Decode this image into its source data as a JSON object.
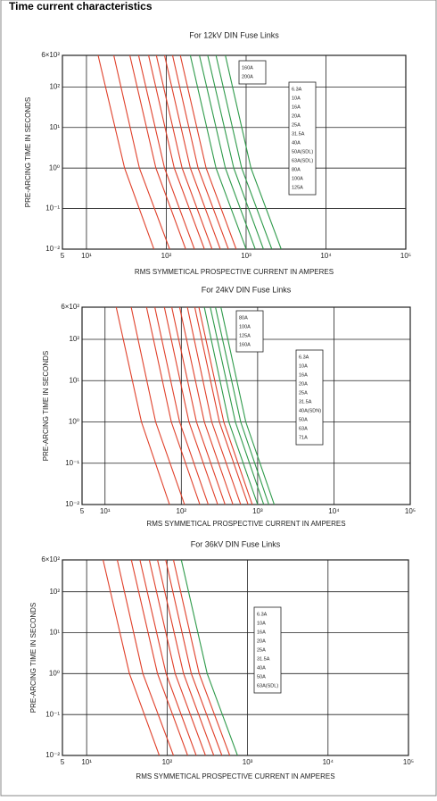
{
  "page_title": "Time current characteristics",
  "chart_data": [
    {
      "type": "line",
      "title": "For 12kV DIN Fuse Links",
      "x_label": "RMS SYMMETICAL PROSPECTIVE CURRENT IN AMPERES",
      "y_label": "PRE-ARCING TIME IN SECONDS",
      "log_x": true,
      "log_y": true,
      "grid": true,
      "xlim": [
        5,
        100000
      ],
      "ylim": [
        0.01,
        600
      ],
      "xticks": [
        5,
        {
          "value": 10,
          "label": "10¹"
        },
        {
          "value": 100,
          "label": "10²"
        },
        {
          "value": 1000,
          "label": "10³"
        },
        {
          "value": 10000,
          "label": "10⁴"
        },
        {
          "value": 100000,
          "label": "10⁵"
        }
      ],
      "yticks": [
        {
          "value": 600,
          "label": "6×10²"
        },
        {
          "value": 100,
          "label": "10²"
        },
        {
          "value": 10,
          "label": "10¹"
        },
        {
          "value": 1,
          "label": "10⁰"
        },
        {
          "value": 0.1,
          "label": "10⁻¹"
        },
        {
          "value": 0.01,
          "label": "10⁻²"
        }
      ],
      "series": [
        {
          "name": "6.3A",
          "color": "#e0402a",
          "x": [
            14,
            30,
            70
          ],
          "values": [
            600,
            1,
            0.01
          ]
        },
        {
          "name": "10A",
          "color": "#e0402a",
          "x": [
            22,
            46,
            110
          ],
          "values": [
            600,
            1,
            0.01
          ]
        },
        {
          "name": "16A",
          "color": "#e0402a",
          "x": [
            35,
            74,
            175
          ],
          "values": [
            600,
            1,
            0.01
          ]
        },
        {
          "name": "20A",
          "color": "#e0402a",
          "x": [
            45,
            95,
            225
          ],
          "values": [
            600,
            1,
            0.01
          ]
        },
        {
          "name": "25A",
          "color": "#e0402a",
          "x": [
            60,
            126,
            300
          ],
          "values": [
            600,
            1,
            0.01
          ]
        },
        {
          "name": "31.5A",
          "color": "#e0402a",
          "x": [
            75,
            158,
            375
          ],
          "values": [
            600,
            1,
            0.01
          ]
        },
        {
          "name": "40A",
          "color": "#e0402a",
          "x": [
            95,
            200,
            475
          ],
          "values": [
            600,
            1,
            0.01
          ]
        },
        {
          "name": "50A(SDL)",
          "color": "#e0402a",
          "x": [
            120,
            250,
            600
          ],
          "values": [
            600,
            1,
            0.01
          ]
        },
        {
          "name": "63A(SDL)",
          "color": "#e0402a",
          "x": [
            150,
            315,
            750
          ],
          "values": [
            600,
            1,
            0.01
          ]
        },
        {
          "name": "80A",
          "color": "#2e9a4a",
          "x": [
            200,
            420,
            1000
          ],
          "values": [
            600,
            1,
            0.01
          ]
        },
        {
          "name": "100A",
          "color": "#2e9a4a",
          "x": [
            260,
            550,
            1300
          ],
          "values": [
            600,
            1,
            0.01
          ]
        },
        {
          "name": "125A",
          "color": "#2e9a4a",
          "x": [
            330,
            700,
            1650
          ],
          "values": [
            600,
            1,
            0.01
          ]
        },
        {
          "name": "160A",
          "color": "#2e9a4a",
          "x": [
            420,
            880,
            2100
          ],
          "values": [
            600,
            1,
            0.01
          ]
        },
        {
          "name": "200A",
          "color": "#2e9a4a",
          "x": [
            550,
            1150,
            2750
          ],
          "values": [
            600,
            1,
            0.01
          ]
        }
      ]
    },
    {
      "type": "line",
      "title": "For 24kV DIN Fuse Links",
      "x_label": "RMS SYMMETICAL PROSPECTIVE CURRENT IN AMPERES",
      "y_label": "PRE-ARCING TIME IN SECONDS",
      "log_x": true,
      "log_y": true,
      "grid": true,
      "xlim": [
        5,
        100000
      ],
      "ylim": [
        0.01,
        600
      ],
      "xticks": [
        5,
        {
          "value": 10,
          "label": "10¹"
        },
        {
          "value": 100,
          "label": "10²"
        },
        {
          "value": 1000,
          "label": "10³"
        },
        {
          "value": 10000,
          "label": "10⁴"
        },
        {
          "value": 100000,
          "label": "10⁵"
        }
      ],
      "yticks": [
        {
          "value": 600,
          "label": "6×10²"
        },
        {
          "value": 100,
          "label": "10²"
        },
        {
          "value": 10,
          "label": "10¹"
        },
        {
          "value": 1,
          "label": "10⁰"
        },
        {
          "value": 0.1,
          "label": "10⁻¹"
        },
        {
          "value": 0.01,
          "label": "10⁻²"
        }
      ],
      "series": [
        {
          "name": "6.3A",
          "color": "#e0402a",
          "x": [
            14,
            30,
            70
          ],
          "values": [
            600,
            1,
            0.01
          ]
        },
        {
          "name": "10A",
          "color": "#e0402a",
          "x": [
            22,
            46,
            110
          ],
          "values": [
            600,
            1,
            0.01
          ]
        },
        {
          "name": "16A",
          "color": "#e0402a",
          "x": [
            35,
            74,
            175
          ],
          "values": [
            600,
            1,
            0.01
          ]
        },
        {
          "name": "20A",
          "color": "#e0402a",
          "x": [
            45,
            95,
            225
          ],
          "values": [
            600,
            1,
            0.01
          ]
        },
        {
          "name": "25A",
          "color": "#e0402a",
          "x": [
            60,
            126,
            300
          ],
          "values": [
            600,
            1,
            0.01
          ]
        },
        {
          "name": "31.5A",
          "color": "#e0402a",
          "x": [
            75,
            158,
            375
          ],
          "values": [
            600,
            1,
            0.01
          ]
        },
        {
          "name": "40A(SDN)",
          "color": "#e0402a",
          "x": [
            95,
            200,
            475
          ],
          "values": [
            600,
            1,
            0.01
          ]
        },
        {
          "name": "50A",
          "color": "#e0402a",
          "x": [
            120,
            250,
            600
          ],
          "values": [
            600,
            1,
            0.01
          ]
        },
        {
          "name": "63A",
          "color": "#e0402a",
          "x": [
            150,
            315,
            750
          ],
          "values": [
            600,
            1,
            0.01
          ]
        },
        {
          "name": "71A",
          "color": "#e0402a",
          "x": [
            170,
            360,
            850
          ],
          "values": [
            600,
            1,
            0.01
          ]
        },
        {
          "name": "80A",
          "color": "#2e9a4a",
          "x": [
            200,
            420,
            1000
          ],
          "values": [
            600,
            1,
            0.01
          ]
        },
        {
          "name": "100A",
          "color": "#2e9a4a",
          "x": [
            240,
            510,
            1200
          ],
          "values": [
            600,
            1,
            0.01
          ]
        },
        {
          "name": "125A",
          "color": "#2e9a4a",
          "x": [
            280,
            600,
            1400
          ],
          "values": [
            600,
            1,
            0.01
          ]
        },
        {
          "name": "160A",
          "color": "#2e9a4a",
          "x": [
            330,
            700,
            1650
          ],
          "values": [
            600,
            1,
            0.01
          ]
        }
      ]
    },
    {
      "type": "line",
      "title": "For 36kV DIN Fuse Links",
      "x_label": "RMS SYMMETICAL PROSPECTIVE CURRENT IN AMPERES",
      "y_label": "PRE-ARCING TIME IN SECONDS",
      "log_x": true,
      "log_y": true,
      "grid": true,
      "xlim": [
        5,
        100000
      ],
      "ylim": [
        0.01,
        600
      ],
      "xticks": [
        5,
        {
          "value": 10,
          "label": "10¹"
        },
        {
          "value": 100,
          "label": "10²"
        },
        {
          "value": 1000,
          "label": "10³"
        },
        {
          "value": 10000,
          "label": "10⁴"
        },
        {
          "value": 100000,
          "label": "10⁵"
        }
      ],
      "yticks": [
        {
          "value": 600,
          "label": "6×10²"
        },
        {
          "value": 100,
          "label": "10²"
        },
        {
          "value": 10,
          "label": "10¹"
        },
        {
          "value": 1,
          "label": "10⁰"
        },
        {
          "value": 0.1,
          "label": "10⁻¹"
        },
        {
          "value": 0.01,
          "label": "10⁻²"
        }
      ],
      "series": [
        {
          "name": "6.3A",
          "color": "#e0402a",
          "x": [
            16,
            34,
            80
          ],
          "values": [
            600,
            1,
            0.01
          ]
        },
        {
          "name": "10A",
          "color": "#e0402a",
          "x": [
            24,
            50,
            120
          ],
          "values": [
            600,
            1,
            0.01
          ]
        },
        {
          "name": "16A",
          "color": "#e0402a",
          "x": [
            36,
            76,
            180
          ],
          "values": [
            600,
            1,
            0.01
          ]
        },
        {
          "name": "20A",
          "color": "#e0402a",
          "x": [
            46,
            97,
            230
          ],
          "values": [
            600,
            1,
            0.01
          ]
        },
        {
          "name": "25A",
          "color": "#e0402a",
          "x": [
            60,
            126,
            300
          ],
          "values": [
            600,
            1,
            0.01
          ]
        },
        {
          "name": "31.5A",
          "color": "#e0402a",
          "x": [
            76,
            160,
            380
          ],
          "values": [
            600,
            1,
            0.01
          ]
        },
        {
          "name": "40A",
          "color": "#e0402a",
          "x": [
            96,
            200,
            480
          ],
          "values": [
            600,
            1,
            0.01
          ]
        },
        {
          "name": "50A",
          "color": "#e0402a",
          "x": [
            120,
            250,
            600
          ],
          "values": [
            600,
            1,
            0.01
          ]
        },
        {
          "name": "63A(SDL)",
          "color": "#2e9a4a",
          "x": [
            150,
            315,
            750
          ],
          "values": [
            600,
            1,
            0.01
          ]
        }
      ]
    }
  ]
}
